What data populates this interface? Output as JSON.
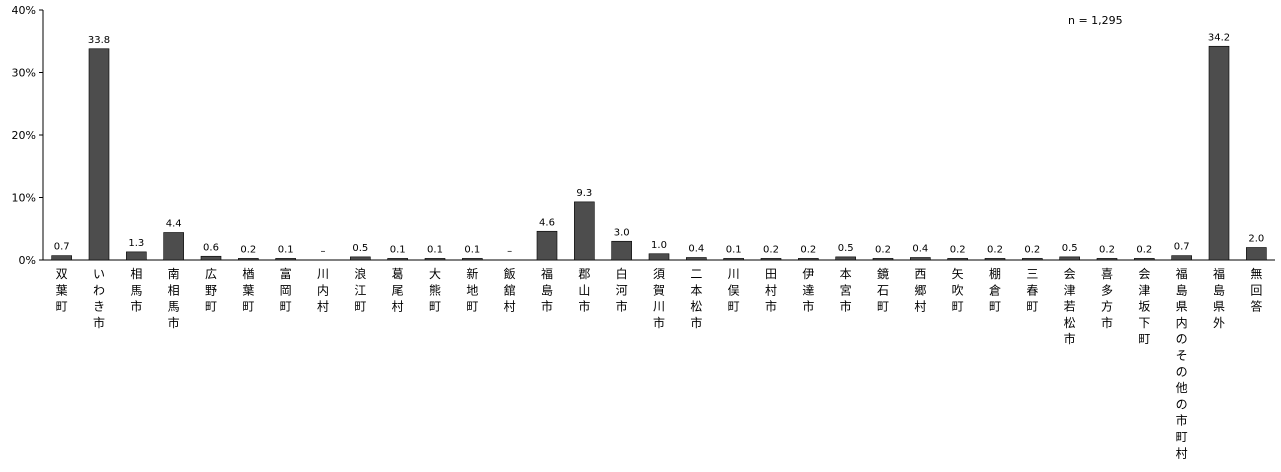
{
  "chart_data": {
    "type": "bar",
    "note": "n = 1,295",
    "ylim": [
      0,
      40
    ],
    "yticks": [
      0,
      10,
      20,
      30,
      40
    ],
    "ytick_labels": [
      "0%",
      "10%",
      "20%",
      "30%",
      "40%"
    ],
    "grid": false,
    "bar_color": "#4d4d4d",
    "categories": [
      "双葉町",
      "いわき市",
      "相馬市",
      "南相馬市",
      "広野町",
      "楢葉町",
      "富岡町",
      "川内村",
      "浪江町",
      "葛尾村",
      "大熊町",
      "新地町",
      "飯舘村",
      "福島市",
      "郡山市",
      "白河市",
      "須賀川市",
      "二本松市",
      "川俣町",
      "田村市",
      "伊達市",
      "本宮市",
      "鏡石町",
      "西郷村",
      "矢吹町",
      "棚倉町",
      "三春町",
      "会津若松市",
      "喜多方市",
      "会津坂下町",
      "福島県内のその他の市町村",
      "福島県外",
      "無回答"
    ],
    "values": [
      0.7,
      33.8,
      1.3,
      4.4,
      0.6,
      0.2,
      0.1,
      null,
      0.5,
      0.1,
      0.1,
      0.1,
      null,
      4.6,
      9.3,
      3.0,
      1.0,
      0.4,
      0.1,
      0.2,
      0.2,
      0.5,
      0.2,
      0.4,
      0.2,
      0.2,
      0.2,
      0.5,
      0.2,
      0.2,
      0.7,
      34.2,
      2.0
    ],
    "value_labels": [
      "0.7",
      "33.8",
      "1.3",
      "4.4",
      "0.6",
      "0.2",
      "0.1",
      "–",
      "0.5",
      "0.1",
      "0.1",
      "0.1",
      "–",
      "4.6",
      "9.3",
      "3.0",
      "1.0",
      "0.4",
      "0.1",
      "0.2",
      "0.2",
      "0.5",
      "0.2",
      "0.4",
      "0.2",
      "0.2",
      "0.2",
      "0.5",
      "0.2",
      "0.2",
      "0.7",
      "34.2",
      "2.0"
    ]
  }
}
